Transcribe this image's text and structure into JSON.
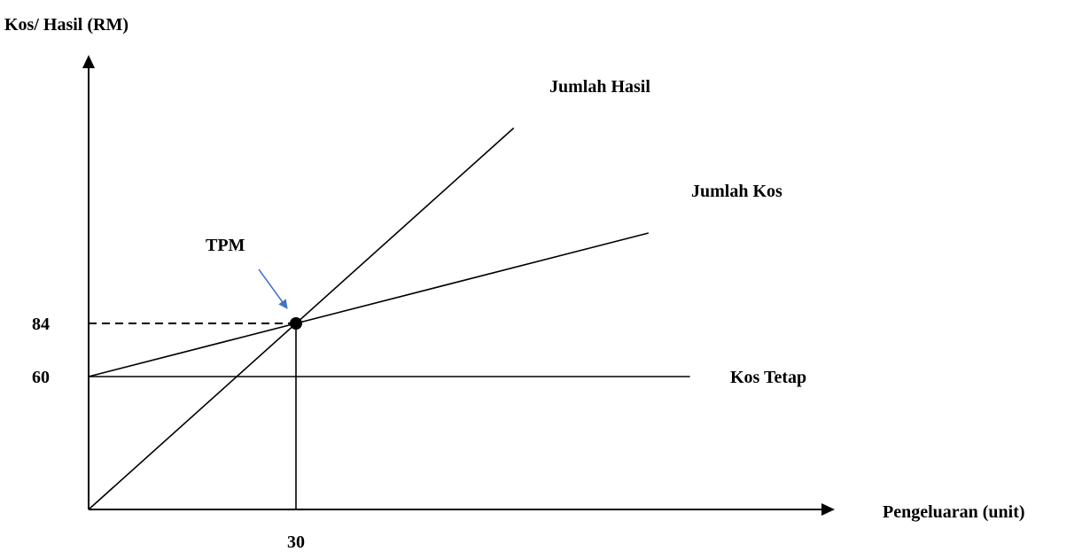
{
  "chart_data": {
    "type": "line",
    "ylabel": "Kos/ Hasil (RM)",
    "xlabel": "Pengeluaran (unit)",
    "xlim": [
      0,
      85
    ],
    "ylim": [
      0,
      244
    ],
    "y_ticks": [
      {
        "value": 60,
        "label": "60"
      },
      {
        "value": 84,
        "label": "84"
      }
    ],
    "x_ticks": [
      {
        "value": 30,
        "label": "30"
      }
    ],
    "series": [
      {
        "name": "Jumlah Hasil",
        "x": [
          0,
          61.5
        ],
        "y": [
          0,
          172.2
        ]
      },
      {
        "name": "Jumlah Kos",
        "x": [
          0,
          81
        ],
        "y": [
          60,
          124.8
        ]
      },
      {
        "name": "Kos Tetap",
        "x": [
          0,
          87
        ],
        "y": [
          60,
          60
        ]
      }
    ],
    "annotations": [
      {
        "label": "TPM",
        "x": 30,
        "y": 84
      }
    ],
    "grid": false,
    "colors": {
      "lines": "#000000",
      "pointer": "#4472c4"
    }
  }
}
